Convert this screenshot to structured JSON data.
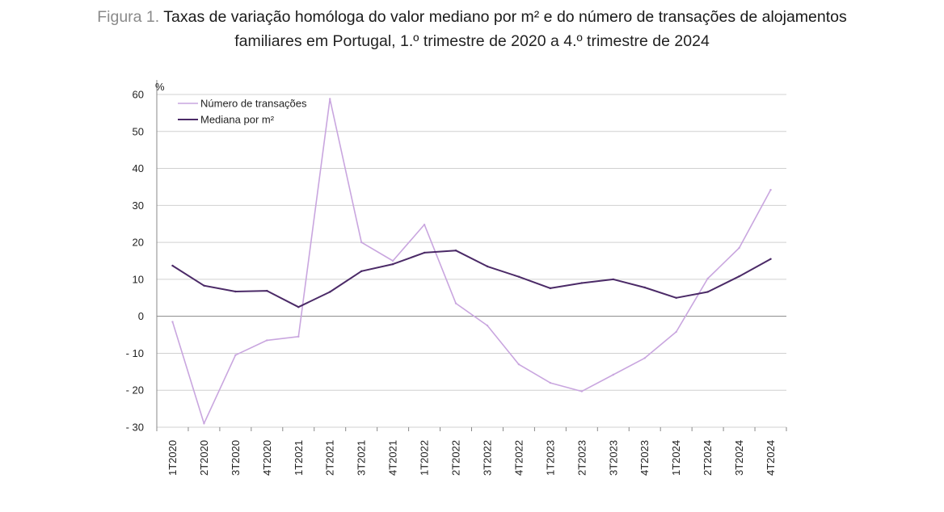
{
  "title": {
    "prefix": "Figura 1.",
    "line1": "Taxas de variação homóloga do valor mediano por m² e do número de transações de alojamentos",
    "line2": "familiares em Portugal, 1.º trimestre de 2020 a 4.º trimestre de 2024"
  },
  "colors": {
    "transacoes": "#c9a6df",
    "mediana": "#4b2a67",
    "grid": "#d0d0d0",
    "axis": "#888888"
  },
  "chart_data": {
    "type": "line",
    "ylabel": "%",
    "ylim": [
      -30,
      60
    ],
    "yticks": [
      60,
      50,
      40,
      30,
      20,
      10,
      0,
      -10,
      -20,
      -30
    ],
    "ytick_labels": [
      "60",
      "50",
      "40",
      "30",
      "20",
      "10",
      "0",
      "- 10",
      "- 20",
      "- 30"
    ],
    "grid": true,
    "legend_position": "top-left",
    "categories": [
      "1T2020",
      "2T2020",
      "3T2020",
      "4T2020",
      "1T2021",
      "2T2021",
      "3T2021",
      "4T2021",
      "1T2022",
      "2T2022",
      "3T2022",
      "4T2022",
      "1T2023",
      "2T2023",
      "3T2023",
      "4T2023",
      "1T2024",
      "2T2024",
      "3T2024",
      "4T2024"
    ],
    "series": [
      {
        "name": "Número de transações",
        "color": "#c9a6df",
        "values": [
          -1.5,
          -29.0,
          -10.5,
          -6.5,
          -5.5,
          58.8,
          20.0,
          15.0,
          24.8,
          3.5,
          -2.5,
          -13.0,
          -18.0,
          -20.3,
          -15.8,
          -11.3,
          -4.2,
          10.2,
          18.5,
          34.2
        ]
      },
      {
        "name": "Mediana por m²",
        "color": "#4b2a67",
        "values": [
          13.7,
          8.3,
          6.7,
          6.9,
          2.5,
          6.6,
          12.2,
          14.1,
          17.2,
          17.8,
          13.5,
          10.7,
          7.6,
          9.0,
          10.0,
          7.8,
          5.0,
          6.6,
          10.8,
          15.5
        ]
      }
    ]
  }
}
